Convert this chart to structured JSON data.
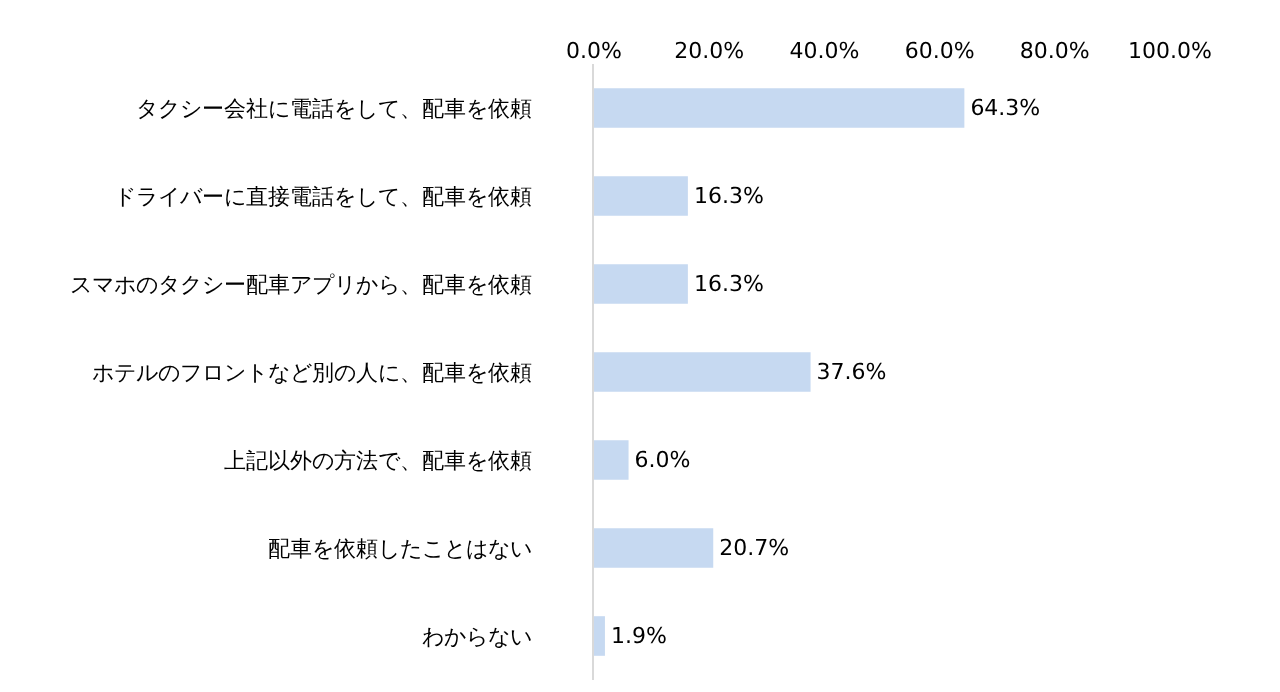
{
  "chart_data": {
    "type": "bar",
    "orientation": "horizontal",
    "categories": [
      "タクシー会社に電話をして、配車を依頼",
      "ドライバーに直接電話をして、配車を依頼",
      "スマホのタクシー配車アプリから、配車を依頼",
      "ホテルのフロントなど別の人に、配車を依頼",
      "上記以外の方法で、配車を依頼",
      "配車を依頼したことはない",
      "わからない"
    ],
    "values": [
      64.3,
      16.3,
      16.3,
      37.6,
      6.0,
      20.7,
      1.9
    ],
    "value_labels": [
      "64.3%",
      "16.3%",
      "16.3%",
      "37.6%",
      "6.0%",
      "20.7%",
      "1.9%"
    ],
    "color": "#c6d9f1",
    "xlim": [
      0,
      100
    ],
    "xticks": [
      {
        "value": 0,
        "label": "0.0%"
      },
      {
        "value": 20,
        "label": "20.0%"
      },
      {
        "value": 40,
        "label": "40.0%"
      },
      {
        "value": 60,
        "label": "60.0%"
      },
      {
        "value": 80,
        "label": "80.0%"
      },
      {
        "value": 100,
        "label": "100.0%"
      }
    ],
    "legend": false
  }
}
